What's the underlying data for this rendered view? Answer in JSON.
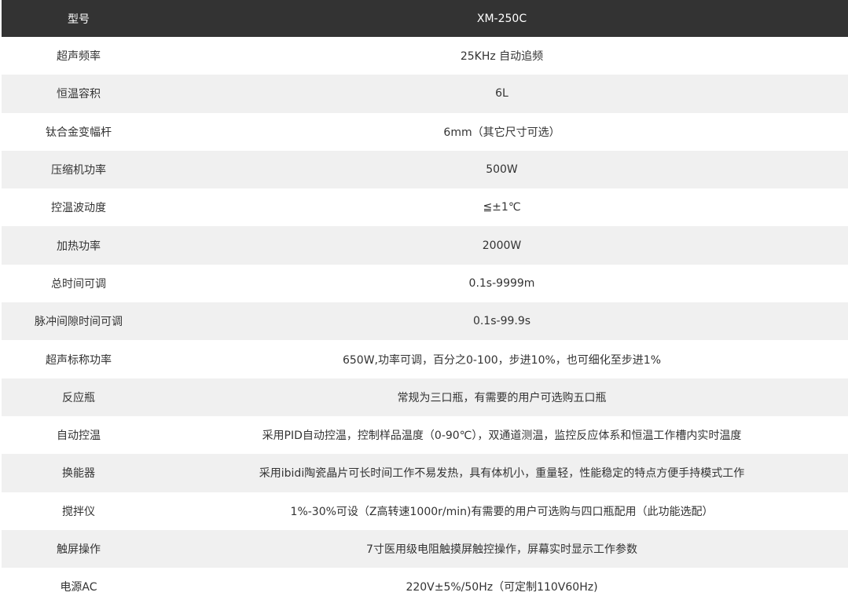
{
  "header": {
    "label": "型号",
    "value": "XM-250C"
  },
  "rows": [
    {
      "label": "超声频率",
      "value": "25KHz 自动追频"
    },
    {
      "label": "恒温容积",
      "value": "6L"
    },
    {
      "label": "钛合金变幅杆",
      "value": "6mm（其它尺寸可选）"
    },
    {
      "label": "压缩机功率",
      "value": "500W"
    },
    {
      "label": "控温波动度",
      "value": "≦±1℃"
    },
    {
      "label": "加热功率",
      "value": "2000W"
    },
    {
      "label": "总时间可调",
      "value": "0.1s-9999m"
    },
    {
      "label": "脉冲间隙时间可调",
      "value": "0.1s-99.9s"
    },
    {
      "label": "超声标称功率",
      "value": "650W,功率可调，百分之0-100，步进10%，也可细化至步进1%"
    },
    {
      "label": "反应瓶",
      "value": "常规为三口瓶，有需要的用户可选购五口瓶"
    },
    {
      "label": "自动控温",
      "value": "采用PID自动控温，控制样品温度（0-90℃），双通道测温，监控反应体系和恒温工作槽内实时温度"
    },
    {
      "label": "换能器",
      "value": "采用ibidi陶瓷晶片可长时间工作不易发热，具有体机小，重量轻，性能稳定的特点方便手持模式工作"
    },
    {
      "label": "搅拌仪",
      "value": "1%-30%可设（Z高转速1000r/min)有需要的用户可选购与四口瓶配用（此功能选配）"
    },
    {
      "label": "触屏操作",
      "value": "7寸医用级电阻触摸屏触控操作，屏幕实时显示工作参数"
    },
    {
      "label": "电源AC",
      "value": "220V±5%/50Hz（可定制110V60Hz)"
    }
  ],
  "colors": {
    "header_bg": "#333333",
    "stripe_bg": "#f0f0f0",
    "text": "#333333"
  }
}
